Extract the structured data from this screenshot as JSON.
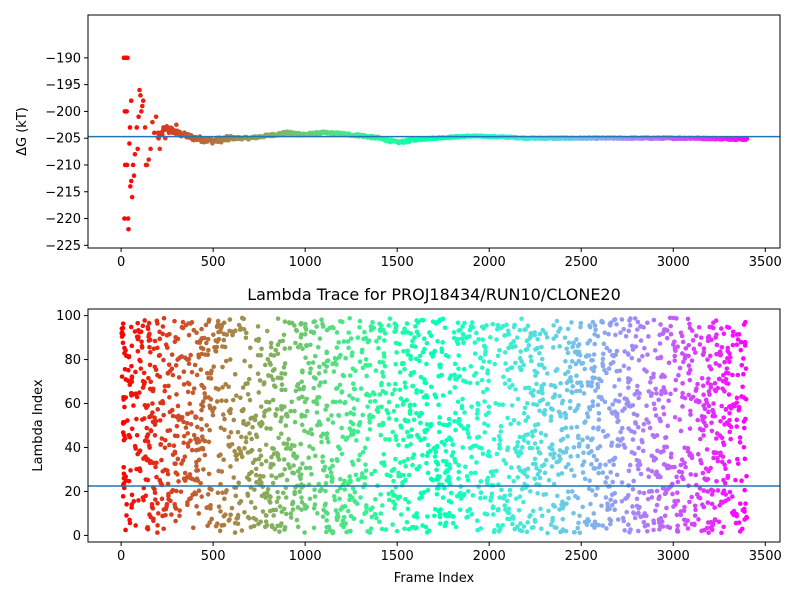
{
  "chart_data": [
    {
      "type": "scatter",
      "title": "",
      "xlabel": "",
      "ylabel": "ΔG (kT)",
      "xlim": [
        -180,
        3580
      ],
      "ylim": [
        -225.5,
        -182
      ],
      "xticks": [
        0,
        500,
        1000,
        1500,
        2000,
        2500,
        3000,
        3500
      ],
      "yticks": [
        -190,
        -195,
        -200,
        -205,
        -210,
        -215,
        -220,
        -225
      ],
      "hline": -204.7,
      "hline_color": "#1f77b4",
      "colormap": "rainbow",
      "n_frames": 3400,
      "grid": false,
      "trend": [
        [
          0,
          -190
        ],
        [
          30,
          -200
        ],
        [
          45,
          -210
        ],
        [
          60,
          -214
        ],
        [
          80,
          -206
        ],
        [
          100,
          -203
        ],
        [
          120,
          -198
        ],
        [
          140,
          -203
        ],
        [
          160,
          -208
        ],
        [
          200,
          -205
        ],
        [
          250,
          -203
        ],
        [
          300,
          -204
        ],
        [
          400,
          -205
        ],
        [
          500,
          -205.5
        ],
        [
          600,
          -205
        ],
        [
          700,
          -205
        ],
        [
          800,
          -204.5
        ],
        [
          900,
          -204
        ],
        [
          1000,
          -204.3
        ],
        [
          1100,
          -204
        ],
        [
          1200,
          -204.2
        ],
        [
          1300,
          -204.5
        ],
        [
          1400,
          -205
        ],
        [
          1500,
          -205.8
        ],
        [
          1600,
          -205.3
        ],
        [
          1700,
          -205
        ],
        [
          1800,
          -204.8
        ],
        [
          1900,
          -204.6
        ],
        [
          2000,
          -204.7
        ],
        [
          2100,
          -204.8
        ],
        [
          2200,
          -205
        ],
        [
          2500,
          -205
        ],
        [
          2800,
          -205
        ],
        [
          3100,
          -205
        ],
        [
          3400,
          -205.2
        ]
      ]
    },
    {
      "type": "scatter",
      "title": "Lambda Trace for PROJ18434/RUN10/CLONE20",
      "xlabel": "Frame Index",
      "ylabel": "Lambda Index",
      "xlim": [
        -180,
        3580
      ],
      "ylim": [
        -3,
        103
      ],
      "xticks": [
        0,
        500,
        1000,
        1500,
        2000,
        2500,
        3000,
        3500
      ],
      "yticks": [
        0,
        20,
        40,
        60,
        80,
        100
      ],
      "hline": 22.5,
      "hline_color": "#1f77b4",
      "colormap": "rainbow",
      "n_frames": 3400,
      "value_range": [
        1,
        99
      ],
      "grid": false
    }
  ]
}
